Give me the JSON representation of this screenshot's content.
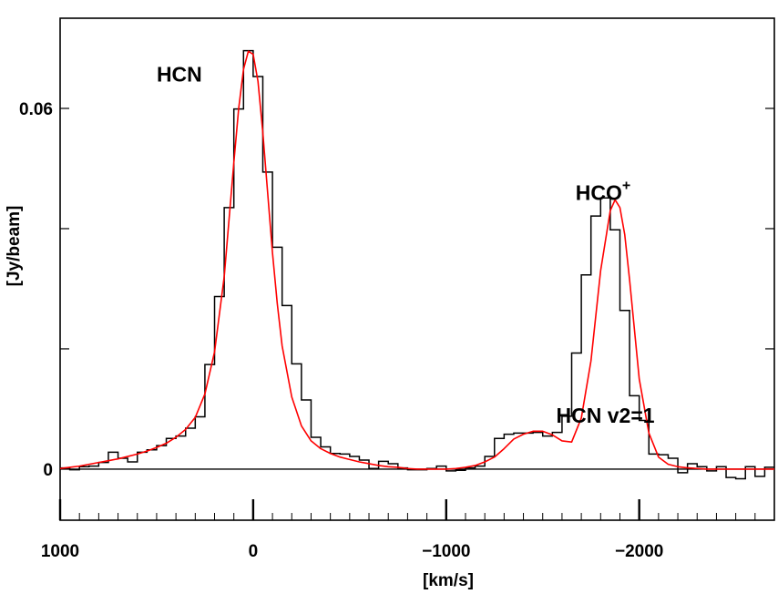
{
  "chart_data": {
    "type": "line",
    "xlabel": "[km/s]",
    "ylabel": "[Jy/beam]",
    "xlim": [
      1000,
      -2700
    ],
    "ylim": [
      -0.0085,
      0.075
    ],
    "x_ticks": [
      {
        "value": 1000,
        "label": "1000"
      },
      {
        "value": 0,
        "label": "0"
      },
      {
        "value": -1000,
        "label": "−1000"
      },
      {
        "value": -2000,
        "label": "−2000"
      }
    ],
    "y_ticks": [
      {
        "value": 0,
        "label": "0"
      },
      {
        "value": 0.06,
        "label": "0.06"
      }
    ],
    "y_minor_ticks": [
      0.02,
      0.04
    ],
    "annotations": [
      {
        "text": "HCN",
        "sup": "",
        "x": 500,
        "y": 0.0645
      },
      {
        "text": "HCN v2=1",
        "sup": "",
        "x": -1570,
        "y": 0.0077
      },
      {
        "text": "HCO",
        "sup": "+",
        "x": -1670,
        "y": 0.0448
      }
    ],
    "series": [
      {
        "style": "histogram",
        "color": "#000000",
        "bin_width": 50,
        "x": [
          975,
          925,
          875,
          825,
          775,
          725,
          675,
          625,
          575,
          525,
          475,
          425,
          375,
          325,
          275,
          225,
          175,
          125,
          75,
          25,
          -25,
          -75,
          -125,
          -175,
          -225,
          -275,
          -325,
          -375,
          -425,
          -475,
          -525,
          -575,
          -625,
          -675,
          -725,
          -775,
          -825,
          -875,
          -925,
          -975,
          -1025,
          -1075,
          -1125,
          -1175,
          -1225,
          -1275,
          -1325,
          -1375,
          -1425,
          -1475,
          -1525,
          -1575,
          -1625,
          -1675,
          -1725,
          -1775,
          -1825,
          -1875,
          -1925,
          -1975,
          -2025,
          -2075,
          -2125,
          -2175,
          -2225,
          -2275,
          -2325,
          -2375,
          -2425,
          -2475,
          -2525,
          -2575,
          -2625,
          -2675
        ],
        "y": [
          0.0002,
          -0.0001,
          0.0004,
          0.0005,
          0.0011,
          0.0028,
          0.0018,
          0.0012,
          0.0028,
          0.0032,
          0.0039,
          0.0051,
          0.0055,
          0.0068,
          0.0087,
          0.0174,
          0.0287,
          0.0435,
          0.0599,
          0.0696,
          0.0653,
          0.0494,
          0.0369,
          0.0272,
          0.0175,
          0.0115,
          0.0053,
          0.0037,
          0.0026,
          0.0025,
          0.0021,
          0.0015,
          0.0001,
          0.0013,
          0.0009,
          0.0002,
          -0.0001,
          -0.0001,
          0.0001,
          0.0005,
          -0.0003,
          -0.0002,
          0.0002,
          0.0005,
          0.0021,
          0.0051,
          0.0058,
          0.006,
          0.006,
          0.0061,
          0.0055,
          0.0061,
          0.0088,
          0.0193,
          0.0323,
          0.0421,
          0.0451,
          0.0398,
          0.0264,
          0.0122,
          0.0081,
          0.0025,
          0.0024,
          0.0018,
          -0.0006,
          0.0009,
          0.0004,
          -0.0003,
          0.0004,
          -0.0014,
          -0.0016,
          0.0004,
          -0.0012,
          0.0003
        ]
      },
      {
        "style": "line",
        "color": "#ff0000",
        "x": [
          1000,
          950,
          900,
          850,
          800,
          750,
          700,
          650,
          600,
          550,
          500,
          450,
          400,
          350,
          300,
          250,
          200,
          150,
          100,
          75,
          50,
          25,
          0,
          -25,
          -50,
          -75,
          -100,
          -125,
          -150,
          -200,
          -250,
          -300,
          -350,
          -400,
          -450,
          -500,
          -550,
          -600,
          -650,
          -700,
          -750,
          -800,
          -850,
          -900,
          -950,
          -1000,
          -1050,
          -1100,
          -1150,
          -1200,
          -1250,
          -1300,
          -1350,
          -1400,
          -1450,
          -1500,
          -1550,
          -1600,
          -1650,
          -1700,
          -1750,
          -1800,
          -1850,
          -1875,
          -1900,
          -1925,
          -1950,
          -2000,
          -2050,
          -2100,
          -2150,
          -2200,
          -2250,
          -2300,
          -2350,
          -2400,
          -2500,
          -2600,
          -2700
        ],
        "y": [
          0.0001,
          0.0003,
          0.0005,
          0.0008,
          0.0011,
          0.0014,
          0.0017,
          0.0021,
          0.0025,
          0.003,
          0.0036,
          0.0043,
          0.0053,
          0.0066,
          0.0086,
          0.0125,
          0.0195,
          0.032,
          0.051,
          0.06,
          0.0665,
          0.0695,
          0.069,
          0.0645,
          0.056,
          0.046,
          0.036,
          0.0275,
          0.0205,
          0.012,
          0.0072,
          0.0047,
          0.0034,
          0.0026,
          0.002,
          0.0016,
          0.0012,
          0.0009,
          0.0006,
          0.0004,
          0.0003,
          0.0001,
          0.0,
          0.0,
          0.0,
          0.0,
          0.0001,
          0.0003,
          0.0006,
          0.0012,
          0.002,
          0.0034,
          0.005,
          0.0058,
          0.0063,
          0.0063,
          0.0057,
          0.0047,
          0.0045,
          0.0085,
          0.018,
          0.033,
          0.043,
          0.0448,
          0.0435,
          0.039,
          0.0315,
          0.015,
          0.006,
          0.002,
          0.0008,
          0.0004,
          0.0002,
          0.0001,
          0.0,
          0.0,
          0.0,
          0.0,
          0.0
        ]
      }
    ],
    "zero_line": true,
    "grid": false
  }
}
